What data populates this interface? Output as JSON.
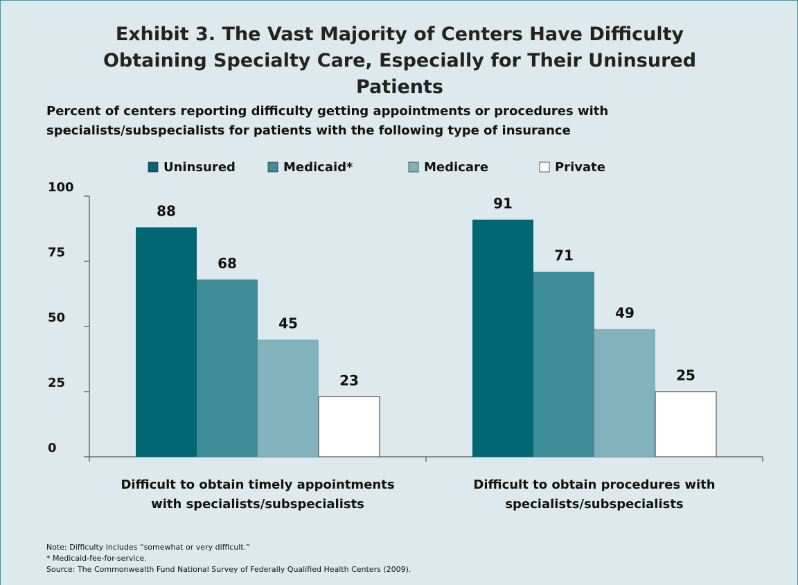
{
  "chart_data": {
    "type": "bar",
    "title": "Exhibit 3. The Vast Majority of Centers Have Difficulty Obtaining Specialty Care, Especially for Their Uninsured Patients",
    "subtitle": "Percent of centers reporting difficulty getting appointments or procedures with specialists/subspecialists for patients with the following type of insurance",
    "categories": [
      "Difficult to obtain timely appointments with specialists/subspecialists",
      "Difficult to obtain procedures with specialists/subspecialists"
    ],
    "series": [
      {
        "name": "Uninsured",
        "color": "#006674",
        "values": [
          88,
          91
        ]
      },
      {
        "name": "Medicaid*",
        "color": "#3f8d98",
        "values": [
          68,
          71
        ]
      },
      {
        "name": "Medicare",
        "color": "#82b3bd",
        "values": [
          45,
          49
        ]
      },
      {
        "name": "Private",
        "color": "#ffffff",
        "values": [
          23,
          25
        ]
      }
    ],
    "ylim": [
      0,
      100
    ],
    "yticks": [
      0,
      25,
      50,
      75,
      100
    ],
    "grid": false,
    "notes": [
      "Note: Difficulty includes “somewhat or very difficult.”",
      "* Medicaid-fee-for-service.",
      "Source: The Commonwealth Fund National Survey of Federally Qualified Health Centers (2009)."
    ]
  }
}
